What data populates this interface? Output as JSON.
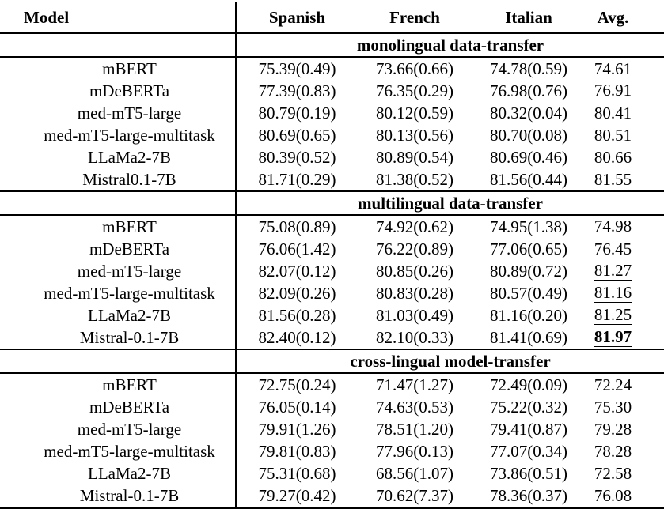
{
  "table": {
    "columns": [
      "Model",
      "Spanish",
      "French",
      "Italian",
      "Avg."
    ],
    "sections": [
      {
        "title": "monolingual data-transfer",
        "rows": [
          {
            "model": "mBERT",
            "spanish": "75.39(0.49)",
            "french": "73.66(0.66)",
            "italian": "74.78(0.59)",
            "avg": "74.61",
            "avg_style": "normal"
          },
          {
            "model": "mDeBERTa",
            "spanish": "77.39(0.83)",
            "french": "76.35(0.29)",
            "italian": "76.98(0.76)",
            "avg": "76.91",
            "avg_style": "underline"
          },
          {
            "model": "med-mT5-large",
            "spanish": "80.79(0.19)",
            "french": "80.12(0.59)",
            "italian": "80.32(0.04)",
            "avg": "80.41",
            "avg_style": "normal"
          },
          {
            "model": "med-mT5-large-multitask",
            "spanish": "80.69(0.65)",
            "french": "80.13(0.56)",
            "italian": "80.70(0.08)",
            "avg": "80.51",
            "avg_style": "normal"
          },
          {
            "model": "LLaMa2-7B",
            "spanish": "80.39(0.52)",
            "french": "80.89(0.54)",
            "italian": "80.69(0.46)",
            "avg": "80.66",
            "avg_style": "normal"
          },
          {
            "model": "Mistral0.1-7B",
            "spanish": "81.71(0.29)",
            "french": "81.38(0.52)",
            "italian": "81.56(0.44)",
            "avg": "81.55",
            "avg_style": "normal"
          }
        ]
      },
      {
        "title": "multilingual data-transfer",
        "rows": [
          {
            "model": "mBERT",
            "spanish": "75.08(0.89)",
            "french": "74.92(0.62)",
            "italian": "74.95(1.38)",
            "avg": "74.98",
            "avg_style": "underline"
          },
          {
            "model": "mDeBERTa",
            "spanish": "76.06(1.42)",
            "french": "76.22(0.89)",
            "italian": "77.06(0.65)",
            "avg": "76.45",
            "avg_style": "normal"
          },
          {
            "model": "med-mT5-large",
            "spanish": "82.07(0.12)",
            "french": "80.85(0.26)",
            "italian": "80.89(0.72)",
            "avg": "81.27",
            "avg_style": "underline"
          },
          {
            "model": "med-mT5-large-multitask",
            "spanish": "82.09(0.26)",
            "french": "80.83(0.28)",
            "italian": "80.57(0.49)",
            "avg": "81.16",
            "avg_style": "underline"
          },
          {
            "model": "LLaMa2-7B",
            "spanish": "81.56(0.28)",
            "french": "81.03(0.49)",
            "italian": "81.16(0.20)",
            "avg": "81.25",
            "avg_style": "underline"
          },
          {
            "model": "Mistral-0.1-7B",
            "spanish": "82.40(0.12)",
            "french": "82.10(0.33)",
            "italian": "81.41(0.69)",
            "avg": "81.97",
            "avg_style": "bold-underline"
          }
        ]
      },
      {
        "title": "cross-lingual model-transfer",
        "rows": [
          {
            "model": "mBERT",
            "spanish": "72.75(0.24)",
            "french": "71.47(1.27)",
            "italian": "72.49(0.09)",
            "avg": "72.24",
            "avg_style": "normal"
          },
          {
            "model": "mDeBERTa",
            "spanish": "76.05(0.14)",
            "french": "74.63(0.53)",
            "italian": "75.22(0.32)",
            "avg": "75.30",
            "avg_style": "normal"
          },
          {
            "model": "med-mT5-large",
            "spanish": "79.91(1.26)",
            "french": "78.51(1.20)",
            "italian": "79.41(0.87)",
            "avg": "79.28",
            "avg_style": "normal"
          },
          {
            "model": "med-mT5-large-multitask",
            "spanish": "79.81(0.83)",
            "french": "77.96(0.13)",
            "italian": "77.07(0.34)",
            "avg": "78.28",
            "avg_style": "normal"
          },
          {
            "model": "LLaMa2-7B",
            "spanish": "75.31(0.68)",
            "french": "68.56(1.07)",
            "italian": "73.86(0.51)",
            "avg": "72.58",
            "avg_style": "normal"
          },
          {
            "model": "Mistral-0.1-7B",
            "spanish": "79.27(0.42)",
            "french": "70.62(7.37)",
            "italian": "78.36(0.37)",
            "avg": "76.08",
            "avg_style": "normal"
          }
        ]
      }
    ]
  }
}
